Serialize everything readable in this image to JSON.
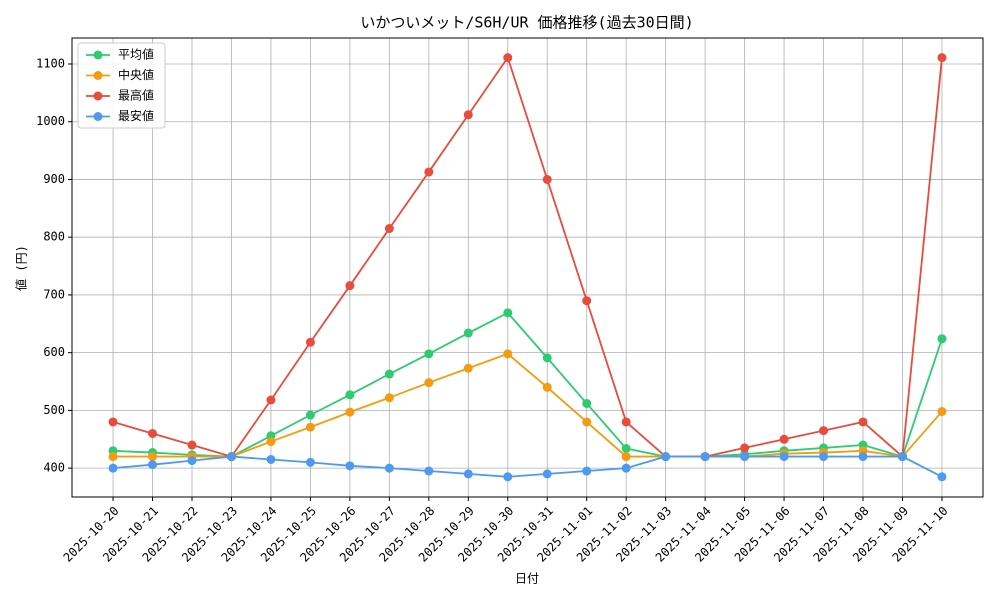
{
  "chart_data": {
    "type": "line",
    "title": "いかついメット/S6H/UR 価格推移(過去30日間)",
    "x_label": "日付",
    "y_label": "値 (円)",
    "categories": [
      "2025-10-20",
      "2025-10-21",
      "2025-10-22",
      "2025-10-23",
      "2025-10-24",
      "2025-10-25",
      "2025-10-26",
      "2025-10-27",
      "2025-10-28",
      "2025-10-29",
      "2025-10-30",
      "2025-10-31",
      "2025-11-01",
      "2025-11-02",
      "2025-11-03",
      "2025-11-04",
      "2025-11-05",
      "2025-11-06",
      "2025-11-07",
      "2025-11-08",
      "2025-11-09",
      "2025-11-10"
    ],
    "series": [
      {
        "name": "平均値",
        "color": "#2ecc71",
        "values": [
          430,
          427,
          423,
          420,
          456,
          492,
          527,
          563,
          598,
          634,
          669,
          591,
          512,
          434,
          420,
          420,
          424,
          430,
          435,
          440,
          420,
          624
        ]
      },
      {
        "name": "中央値",
        "color": "#f39c12",
        "values": [
          420,
          420,
          420,
          420,
          446,
          471,
          497,
          522,
          548,
          573,
          598,
          540,
          480,
          420,
          420,
          420,
          420,
          425,
          427,
          430,
          420,
          498
        ]
      },
      {
        "name": "最高値",
        "color": "#e74c3c",
        "values": [
          480,
          460,
          440,
          420,
          518,
          618,
          716,
          815,
          913,
          1012,
          1111,
          900,
          690,
          480,
          420,
          420,
          435,
          450,
          465,
          480,
          420,
          1111
        ]
      },
      {
        "name": "最安値",
        "color": "#4e9af1",
        "values": [
          400,
          406,
          413,
          420,
          415,
          410,
          404,
          400,
          395,
          390,
          385,
          390,
          395,
          400,
          420,
          420,
          420,
          420,
          420,
          420,
          420,
          385
        ]
      }
    ],
    "ylim": [
      350,
      1145
    ],
    "yticks": [
      400,
      500,
      600,
      700,
      800,
      900,
      1000,
      1100
    ],
    "grid": true,
    "legend": "upper-left"
  }
}
